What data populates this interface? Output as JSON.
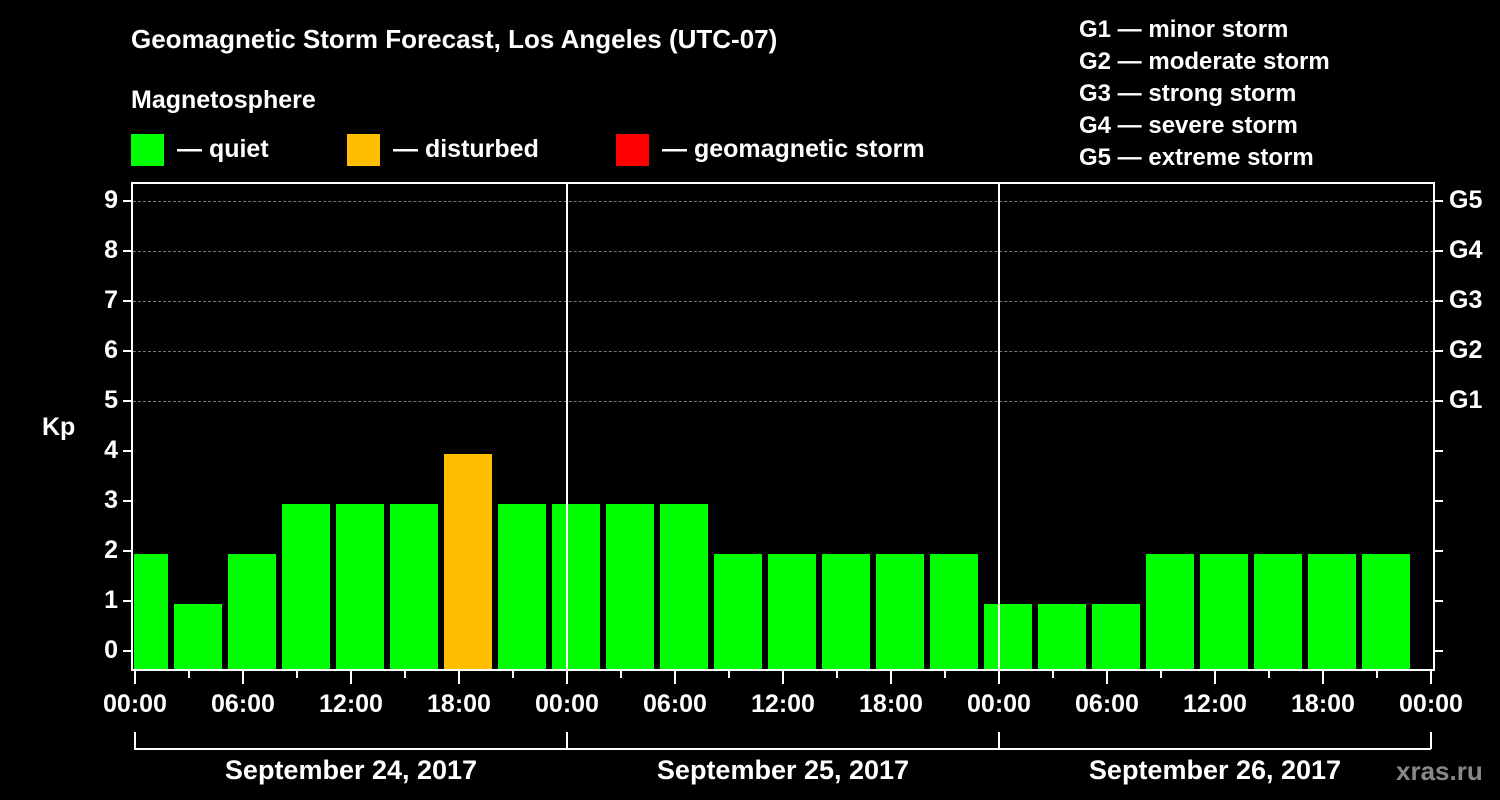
{
  "title": "Geomagnetic Storm Forecast, Los Angeles (UTC-07)",
  "legend": {
    "heading": "Magnetosphere",
    "items": [
      {
        "label": "— quiet",
        "color": "#00ff00"
      },
      {
        "label": "— disturbed",
        "color": "#ffbf00"
      },
      {
        "label": "— geomagnetic storm",
        "color": "#ff0000"
      }
    ]
  },
  "storm_scale": [
    "G1 — minor storm",
    "G2 — moderate storm",
    "G3 — strong storm",
    "G4 — severe storm",
    "G5 — extreme storm"
  ],
  "y_axis_label": "Kp",
  "y_ticks": [
    "0",
    "1",
    "2",
    "3",
    "4",
    "5",
    "6",
    "7",
    "8",
    "9"
  ],
  "g_ticks": [
    "G1",
    "G2",
    "G3",
    "G4",
    "G5"
  ],
  "x_ticks": [
    "00:00",
    "06:00",
    "12:00",
    "18:00",
    "00:00",
    "06:00",
    "12:00",
    "18:00",
    "00:00",
    "06:00",
    "12:00",
    "18:00",
    "00:00"
  ],
  "days": [
    "September 24, 2017",
    "September 25, 2017",
    "September 26, 2017"
  ],
  "watermark": "xras.ru",
  "chart_data": {
    "type": "bar",
    "title": "Geomagnetic Storm Forecast, Los Angeles (UTC-07)",
    "xlabel": "",
    "ylabel": "Kp",
    "ylim": [
      0,
      9
    ],
    "grid": true,
    "legend_position": "top",
    "interval_hours": 3,
    "categories": [
      "Sep 24 00:00",
      "Sep 24 03:00",
      "Sep 24 06:00",
      "Sep 24 09:00",
      "Sep 24 12:00",
      "Sep 24 15:00",
      "Sep 24 18:00",
      "Sep 24 21:00",
      "Sep 25 00:00",
      "Sep 25 03:00",
      "Sep 25 06:00",
      "Sep 25 09:00",
      "Sep 25 12:00",
      "Sep 25 15:00",
      "Sep 25 18:00",
      "Sep 25 21:00",
      "Sep 26 00:00",
      "Sep 26 03:00",
      "Sep 26 06:00",
      "Sep 26 09:00",
      "Sep 26 12:00",
      "Sep 26 15:00",
      "Sep 26 18:00",
      "Sep 26 21:00"
    ],
    "values": [
      2,
      1,
      2,
      3,
      3,
      3,
      4,
      3,
      3,
      3,
      3,
      2,
      2,
      2,
      2,
      2,
      1,
      1,
      1,
      2,
      2,
      2,
      2,
      2
    ],
    "status": [
      "quiet",
      "quiet",
      "quiet",
      "quiet",
      "quiet",
      "quiet",
      "disturbed",
      "quiet",
      "quiet",
      "quiet",
      "quiet",
      "quiet",
      "quiet",
      "quiet",
      "quiet",
      "quiet",
      "quiet",
      "quiet",
      "quiet",
      "quiet",
      "quiet",
      "quiet",
      "quiet",
      "quiet"
    ],
    "colors": {
      "quiet": "#00ff00",
      "disturbed": "#ffbf00",
      "storm": "#ff0000"
    },
    "right_axis": {
      "G1": 5,
      "G2": 6,
      "G3": 7,
      "G4": 8,
      "G5": 9
    }
  }
}
